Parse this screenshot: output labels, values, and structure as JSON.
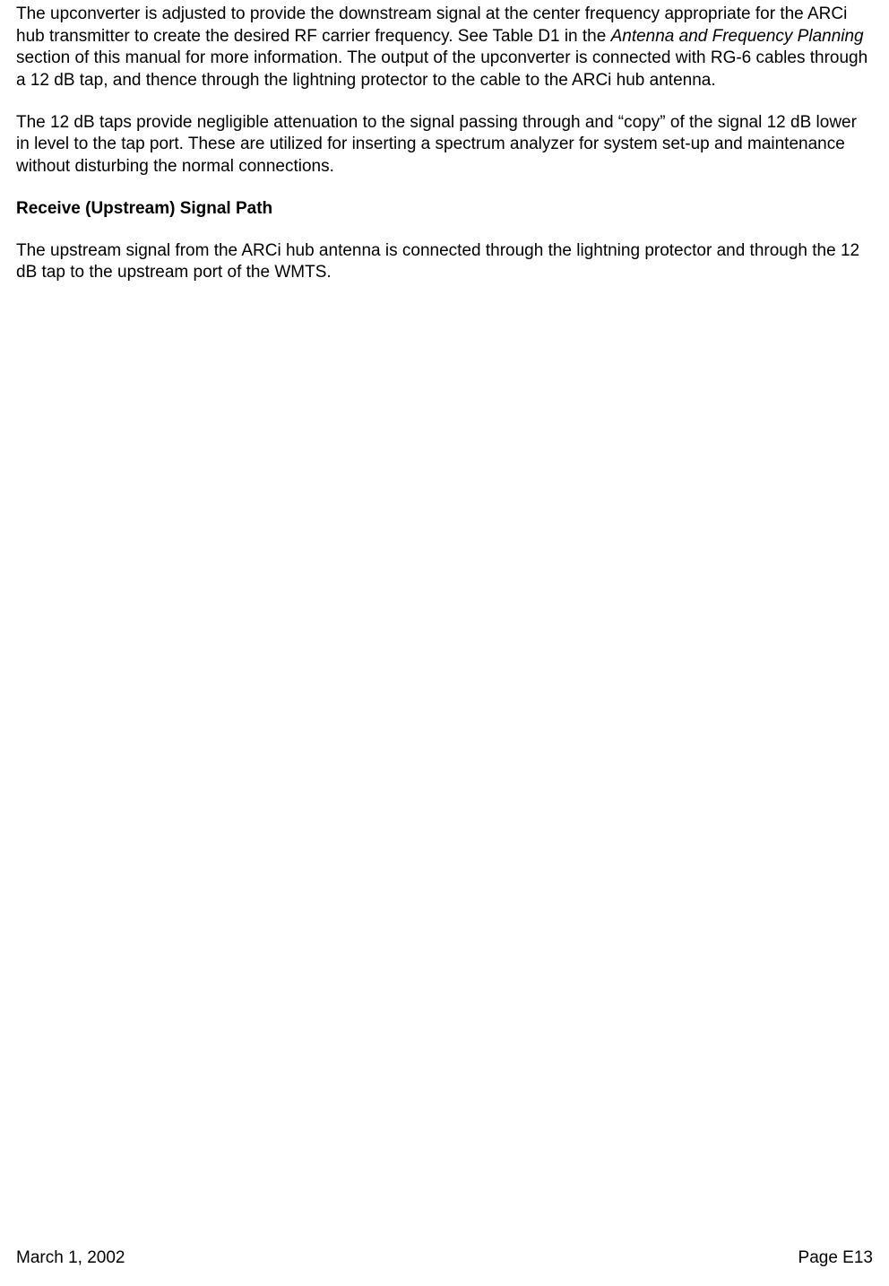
{
  "body": {
    "p1_a": "The upconverter is adjusted to provide the downstream signal at the center frequency appropriate for the ARCi hub transmitter to create the desired RF carrier frequency.  See Table D1 in the ",
    "p1_italic": "Antenna and Frequency Planning",
    "p1_b": " section of this manual for more information.  The output of the upconverter is connected with RG-6 cables through a 12 dB tap, and thence through the lightning protector to the cable to the ARCi hub antenna.",
    "p2": "The 12 dB taps provide negligible attenuation to the signal passing through and “copy” of the signal 12 dB lower in level to the tap port.  These are utilized for inserting a spectrum analyzer for system set-up and maintenance without disturbing the normal connections.",
    "heading": "Receive (Upstream) Signal Path",
    "p3": "The upstream signal from the ARCi hub antenna is connected through the lightning protector and through the 12 dB tap to the upstream port of the WMTS."
  },
  "footer": {
    "date": "March 1, 2002",
    "page": "Page E13"
  }
}
